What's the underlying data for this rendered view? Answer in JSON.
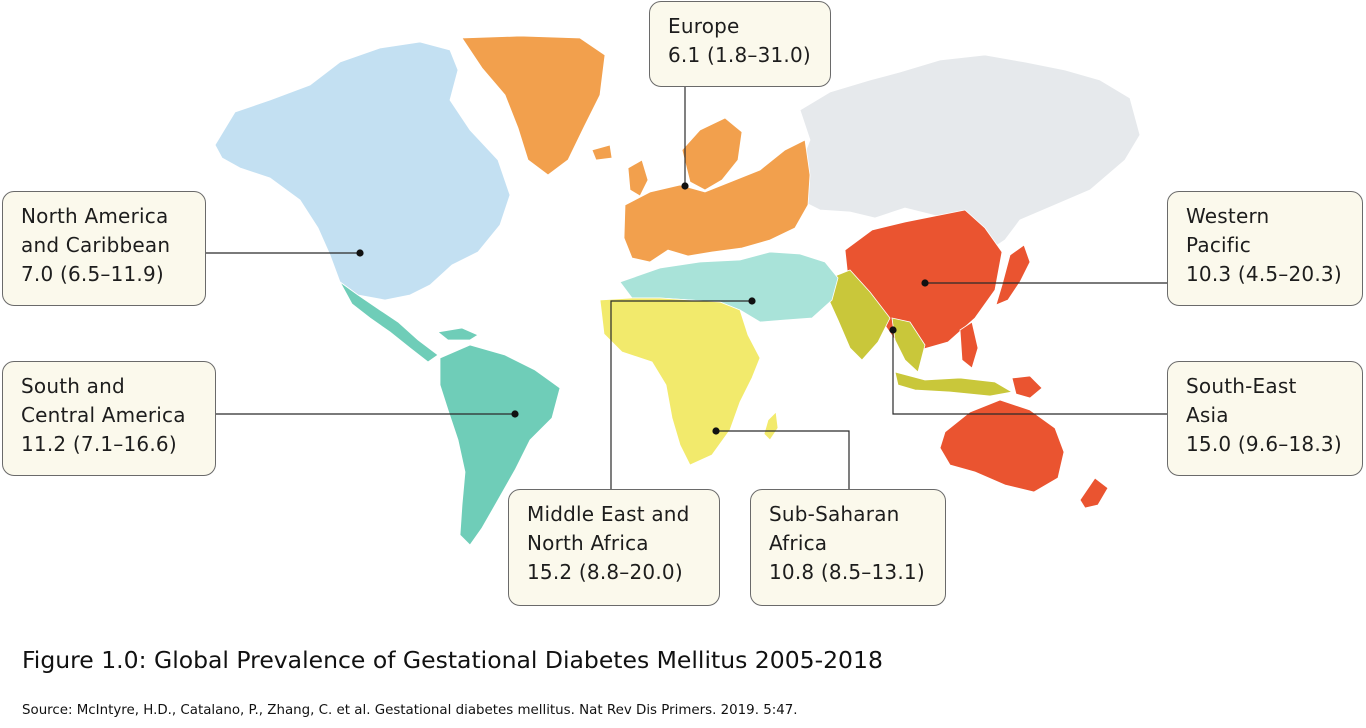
{
  "regions": {
    "north_america": {
      "name_lines": [
        "North America",
        "and Caribbean"
      ],
      "value": "7.0 (6.5–11.9)",
      "color": "#c3e0f2"
    },
    "south_america": {
      "name_lines": [
        "South and",
        "Central America"
      ],
      "value": "11.2 (7.1–16.6)",
      "color": "#6fcdb8"
    },
    "europe": {
      "name_lines": [
        "Europe"
      ],
      "value": "6.1 (1.8–31.0)",
      "color": "#f2a04d"
    },
    "middle_east_north_africa": {
      "name_lines": [
        "Middle East and",
        "North Africa"
      ],
      "value": "15.2 (8.8–20.0)",
      "color": "#a9e3d9"
    },
    "sub_saharan_africa": {
      "name_lines": [
        "Sub-Saharan",
        "Africa"
      ],
      "value": "10.8 (8.5–13.1)",
      "color": "#f2ea6c"
    },
    "western_pacific": {
      "name_lines": [
        "Western",
        "Pacific"
      ],
      "value": "10.3 (4.5–20.3)",
      "color": "#ea5430"
    },
    "south_east_asia": {
      "name_lines": [
        "South-East",
        "Asia"
      ],
      "value": "15.0 (9.6–18.3)",
      "color": "#c9c73a"
    },
    "unclassified": {
      "color": "#e6e9ec"
    }
  },
  "caption": {
    "title": "Figure 1.0: Global Prevalence of Gestational Diabetes Mellitus 2005-2018",
    "source": "Source: McIntyre, H.D., Catalano, P., Zhang, C. et al. Gestational diabetes mellitus. Nat Rev Dis Primers. 2019. 5:47."
  }
}
